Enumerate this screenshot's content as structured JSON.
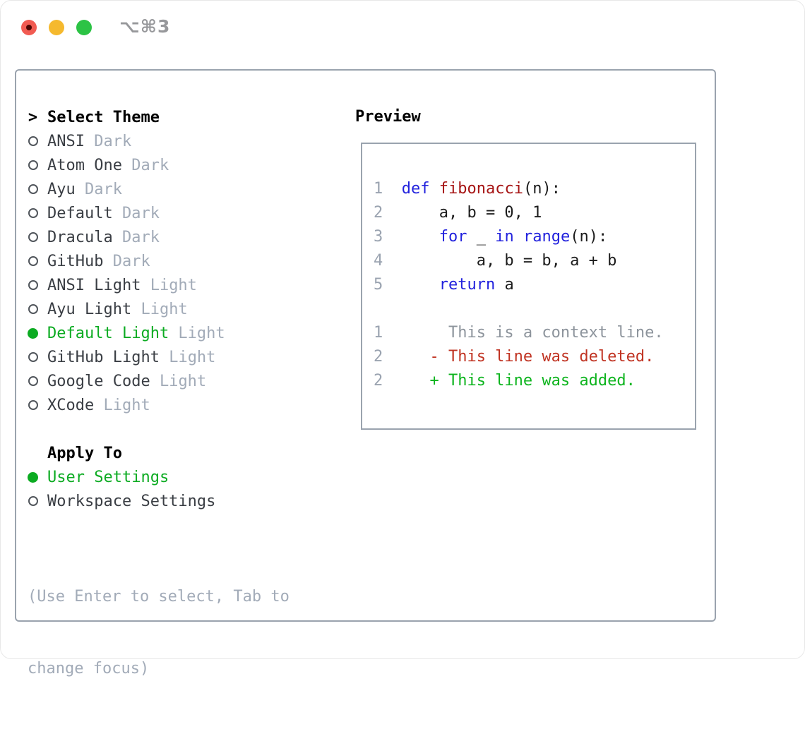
{
  "window": {
    "title": "⌥⌘3",
    "traffic_lights": [
      {
        "name": "close",
        "color": "#f15b52",
        "has_dot": true
      },
      {
        "name": "minimize",
        "color": "#f5b92e",
        "has_dot": false
      },
      {
        "name": "zoom",
        "color": "#2cc345",
        "has_dot": false
      }
    ]
  },
  "panel": {
    "theme_list": {
      "header": "Select Theme",
      "header_marker": ">",
      "items": [
        {
          "name": "ANSI",
          "variant": "Dark",
          "selected": false
        },
        {
          "name": "Atom One",
          "variant": "Dark",
          "selected": false
        },
        {
          "name": "Ayu",
          "variant": "Dark",
          "selected": false
        },
        {
          "name": "Default",
          "variant": "Dark",
          "selected": false
        },
        {
          "name": "Dracula",
          "variant": "Dark",
          "selected": false
        },
        {
          "name": "GitHub",
          "variant": "Dark",
          "selected": false
        },
        {
          "name": "ANSI Light",
          "variant": "Light",
          "selected": false
        },
        {
          "name": "Ayu Light",
          "variant": "Light",
          "selected": false
        },
        {
          "name": "Default Light",
          "variant": "Light",
          "selected": true
        },
        {
          "name": "GitHub Light",
          "variant": "Light",
          "selected": false
        },
        {
          "name": "Google Code",
          "variant": "Light",
          "selected": false
        },
        {
          "name": "XCode",
          "variant": "Light",
          "selected": false
        }
      ]
    },
    "apply_to": {
      "header": "Apply To",
      "items": [
        {
          "name": "User Settings",
          "selected": true
        },
        {
          "name": "Workspace Settings",
          "selected": false
        }
      ]
    },
    "hint_lines": [
      "(Use Enter to select, Tab to",
      "change focus)"
    ],
    "preview": {
      "header": "Preview",
      "code_lines": [
        {
          "ln": "1",
          "tokens": [
            {
              "c": "kw",
              "t": "def"
            },
            {
              "c": "plain",
              "t": " "
            },
            {
              "c": "func",
              "t": "fibonacci"
            },
            {
              "c": "plain",
              "t": "(n):"
            }
          ]
        },
        {
          "ln": "2",
          "tokens": [
            {
              "c": "plain",
              "t": "    a, b = 0, 1"
            }
          ]
        },
        {
          "ln": "3",
          "tokens": [
            {
              "c": "plain",
              "t": "    "
            },
            {
              "c": "kw",
              "t": "for"
            },
            {
              "c": "plain",
              "t": " _ "
            },
            {
              "c": "kw",
              "t": "in"
            },
            {
              "c": "plain",
              "t": " "
            },
            {
              "c": "kw",
              "t": "range"
            },
            {
              "c": "plain",
              "t": "(n):"
            }
          ]
        },
        {
          "ln": "4",
          "tokens": [
            {
              "c": "plain",
              "t": "        a, b = b, a + b"
            }
          ]
        },
        {
          "ln": "5",
          "tokens": [
            {
              "c": "plain",
              "t": "    "
            },
            {
              "c": "kw",
              "t": "return"
            },
            {
              "c": "plain",
              "t": " a"
            }
          ]
        },
        {
          "ln": "",
          "tokens": []
        },
        {
          "ln": "1",
          "tokens": [
            {
              "c": "ctx",
              "t": "     This is a context line."
            }
          ]
        },
        {
          "ln": "2",
          "tokens": [
            {
              "c": "del",
              "t": "   - This line was deleted."
            }
          ]
        },
        {
          "ln": "2",
          "tokens": [
            {
              "c": "add",
              "t": "   + This line was added."
            }
          ]
        }
      ]
    }
  },
  "colors": {
    "accent_green": "#0cab22",
    "keyword_blue": "#2222dd",
    "function_red": "#a61414",
    "deleted_red": "#c03322",
    "added_green": "#0db41e",
    "muted_gray": "#a2abb8",
    "border_gray": "#9aa3ae"
  }
}
